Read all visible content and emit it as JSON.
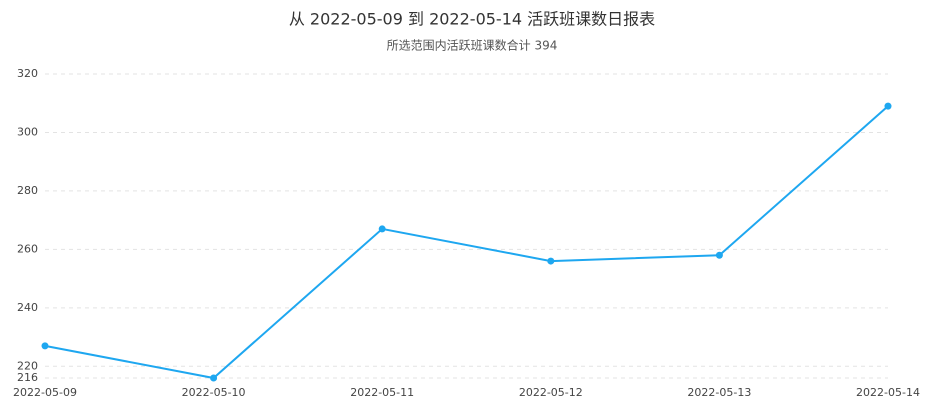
{
  "chart_data": {
    "type": "line",
    "title": "从 2022-05-09 到 2022-05-14 活跃班课数日报表",
    "subtitle": "所选范围内活跃班课数合计 394",
    "categories": [
      "2022-05-09",
      "2022-05-10",
      "2022-05-11",
      "2022-05-12",
      "2022-05-13",
      "2022-05-14"
    ],
    "series": [
      {
        "color": "#1ea7f0",
        "values": [
          227,
          216,
          267,
          256,
          258,
          309
        ]
      }
    ],
    "ylim": [
      216,
      320
    ],
    "yticks": [
      216,
      220,
      240,
      260,
      280,
      300,
      320
    ],
    "grid": true
  }
}
